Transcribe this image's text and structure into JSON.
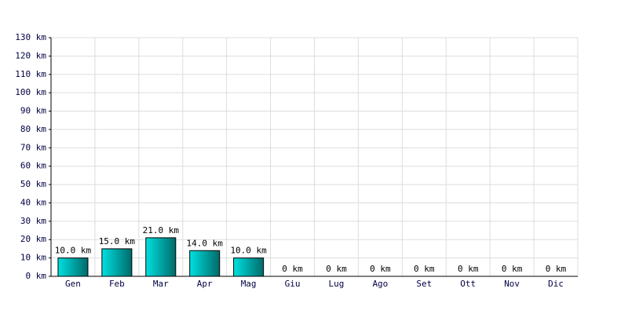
{
  "chart_data": {
    "type": "bar",
    "categories": [
      "Gen",
      "Feb",
      "Mar",
      "Apr",
      "Mag",
      "Giu",
      "Lug",
      "Ago",
      "Set",
      "Ott",
      "Nov",
      "Dic"
    ],
    "values": [
      10,
      15,
      21,
      14,
      10,
      0,
      0,
      0,
      0,
      0,
      0,
      0
    ],
    "value_labels": [
      "10.0 km",
      "15.0 km",
      "21.0 km",
      "14.0 km",
      "10.0 km",
      "0 km",
      "0 km",
      "0 km",
      "0 km",
      "0 km",
      "0 km",
      "0 km"
    ],
    "color": "#00e0e0",
    "ylim": [
      0,
      130
    ],
    "yticks": [
      {
        "value": 0,
        "label": "0 km"
      },
      {
        "value": 10,
        "label": "10 km"
      },
      {
        "value": 20,
        "label": "20 km"
      },
      {
        "value": 30,
        "label": "30 km"
      },
      {
        "value": 40,
        "label": "40 km"
      },
      {
        "value": 50,
        "label": "50 km"
      },
      {
        "value": 60,
        "label": "60 km"
      },
      {
        "value": 70,
        "label": "70 km"
      },
      {
        "value": 80,
        "label": "80 km"
      },
      {
        "value": 90,
        "label": "90 km"
      },
      {
        "value": 100,
        "label": "100 km"
      },
      {
        "value": 110,
        "label": "110 km"
      },
      {
        "value": 120,
        "label": "120 km"
      },
      {
        "value": 130,
        "label": "130 km"
      }
    ],
    "grid": true
  }
}
